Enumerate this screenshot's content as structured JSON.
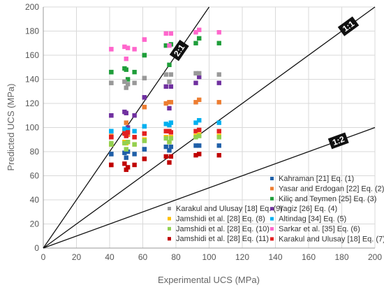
{
  "chart_data": {
    "type": "scatter",
    "xlabel": "Experimental UCS (MPa)",
    "ylabel": "Predicted UCS (MPa)",
    "xlim": [
      0,
      200
    ],
    "ylim": [
      0,
      200
    ],
    "xticks": [
      0,
      20,
      40,
      60,
      80,
      100,
      120,
      140,
      160,
      180,
      200
    ],
    "yticks": [
      0,
      20,
      40,
      60,
      80,
      100,
      120,
      140,
      160,
      180,
      200
    ],
    "grid": true,
    "x": [
      41,
      41,
      49,
      50,
      51,
      55,
      61,
      61,
      74,
      76,
      77,
      92,
      94,
      106
    ],
    "series": [
      {
        "name": "Kahraman [21] Eq. (1)",
        "color": "#1f5fa8",
        "values": [
          78,
          78,
          79,
          75,
          80,
          78,
          82,
          82,
          84,
          81,
          84,
          85,
          85,
          85
        ]
      },
      {
        "name": "Yasar and Erdogan [22] Eq. (2)",
        "color": "#ed7d31",
        "values": [
          92,
          93,
          97,
          104,
          94,
          92,
          117,
          117,
          120,
          121,
          121,
          121,
          123,
          121
        ]
      },
      {
        "name": "Kiliç and Teymen [25] Eq. (3)",
        "color": "#1f9e3a",
        "values": [
          146,
          146,
          149,
          148,
          140,
          146,
          160,
          160,
          168,
          152,
          169,
          170,
          174,
          170
        ]
      },
      {
        "name": "Yagiz [26] Eq. (4)",
        "color": "#7030a0",
        "values": [
          110,
          110,
          113,
          112,
          100,
          110,
          125,
          125,
          134,
          116,
          134,
          137,
          142,
          137
        ]
      },
      {
        "name": "Altindag [34] Eq. (5)",
        "color": "#00b0f0",
        "values": [
          97,
          97,
          99,
          95,
          98,
          97,
          101,
          101,
          103,
          102,
          104,
          104,
          106,
          104
        ]
      },
      {
        "name": "Sarkar et al. [35] Eq. (6)",
        "color": "#ff66cc",
        "values": [
          165,
          165,
          167,
          157,
          166,
          165,
          173,
          173,
          178,
          168,
          178,
          179,
          181,
          179
        ]
      },
      {
        "name": "Karakul and Ulusay [18] Eq. (7)",
        "color": "#e32020",
        "values": [
          92,
          92,
          95,
          93,
          96,
          92,
          95,
          95,
          97,
          97,
          96,
          97,
          98,
          97
        ]
      },
      {
        "name": "Karakul and Ulusay [18] Eq. (9)",
        "color": "#999999",
        "values": [
          137,
          137,
          138,
          133,
          136,
          137,
          141,
          141,
          144,
          138,
          144,
          145,
          145,
          144
        ]
      },
      {
        "name": "Jamshidi et al. [28] Eq. (8)",
        "color": "#ffc000",
        "values": [
          86,
          86,
          88,
          87,
          88,
          86,
          90,
          90,
          92,
          88,
          92,
          93,
          94,
          93
        ]
      },
      {
        "name": "Jamshidi et al. [28] Eq. (10)",
        "color": "#92d050",
        "values": [
          86,
          87,
          87,
          82,
          88,
          86,
          89,
          89,
          91,
          88,
          91,
          92,
          93,
          92
        ]
      },
      {
        "name": "Jamshidi et al. [28] Eq. (11)",
        "color": "#c00000",
        "values": [
          69,
          69,
          70,
          65,
          67,
          69,
          74,
          74,
          76,
          71,
          76,
          77,
          78,
          77
        ]
      }
    ],
    "reference_lines": [
      {
        "label": "2:1",
        "slope": 2
      },
      {
        "label": "1:1",
        "slope": 1
      },
      {
        "label": "1:2",
        "slope": 0.5
      }
    ]
  }
}
